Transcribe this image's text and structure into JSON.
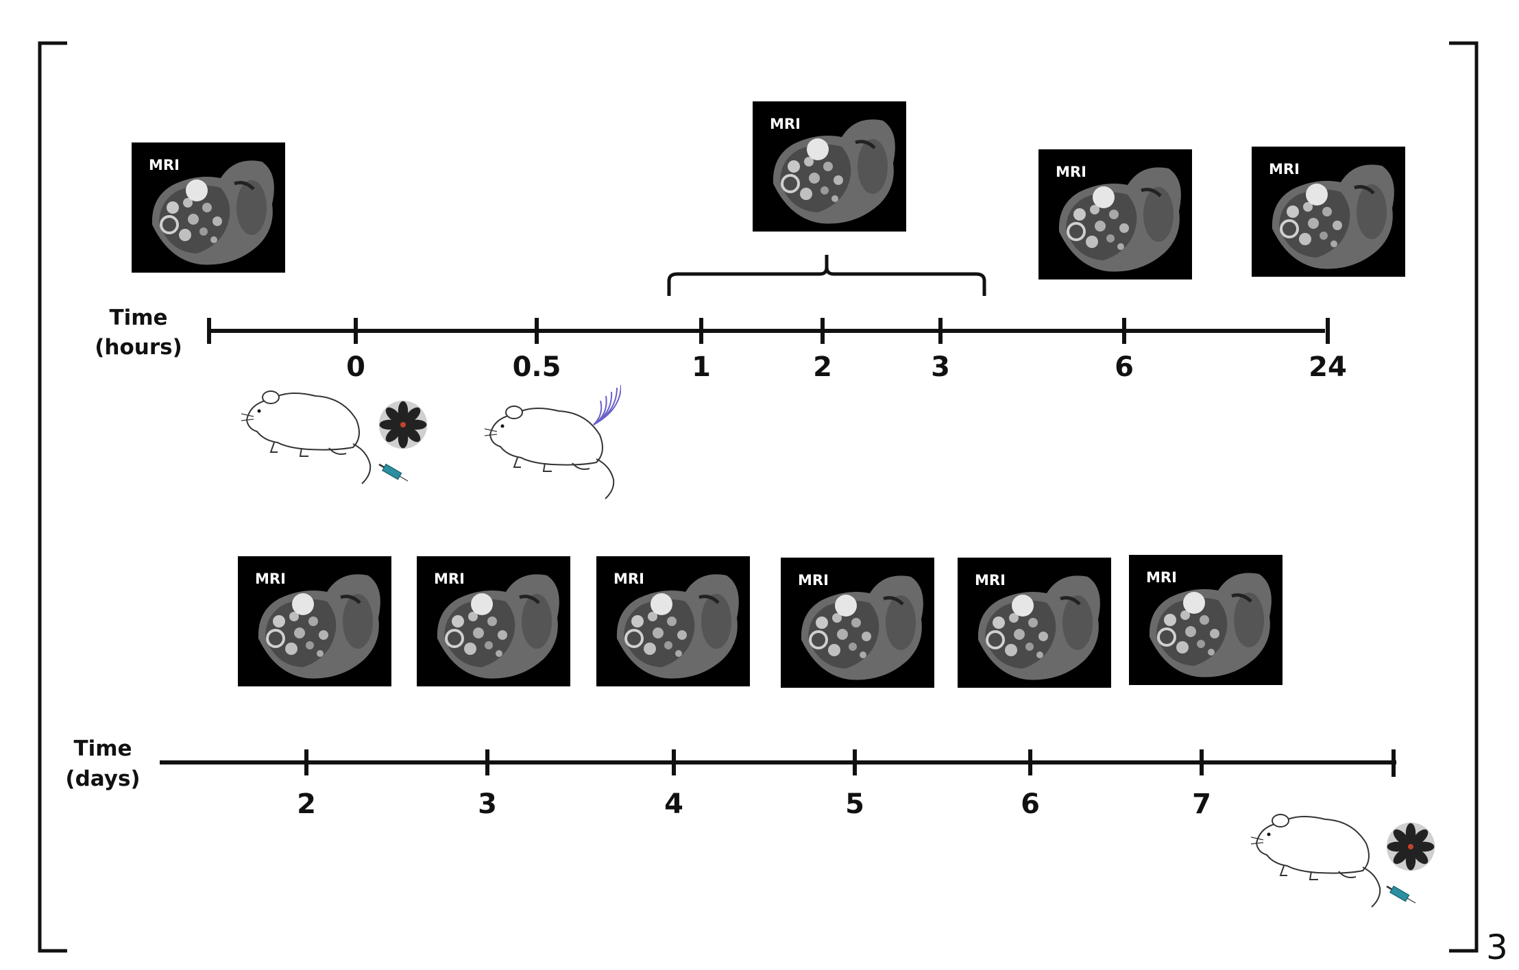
{
  "hours_timeline": {
    "title_line1": "Time",
    "title_line2": "(hours)",
    "ticks": [
      "0",
      "0.5",
      "1",
      "2",
      "3",
      "6",
      "24"
    ],
    "mri_label": "MRI"
  },
  "days_timeline": {
    "title_line1": "Time",
    "title_line2": "(days)",
    "ticks": [
      "2",
      "3",
      "4",
      "5",
      "6",
      "7"
    ],
    "mri_label": "MRI"
  },
  "repeat_count": "3",
  "icons": [
    "mri-scan-icon",
    "mouse-icon",
    "nanoparticle-icon",
    "syringe-icon",
    "ultrasound-wave-icon"
  ],
  "colors": {
    "line": "#111111",
    "mri_bg": "#000000",
    "syringe": "#2a8fa0",
    "nanoparticle_core": "#c0442a",
    "ultrasound": "#6a60c8"
  }
}
